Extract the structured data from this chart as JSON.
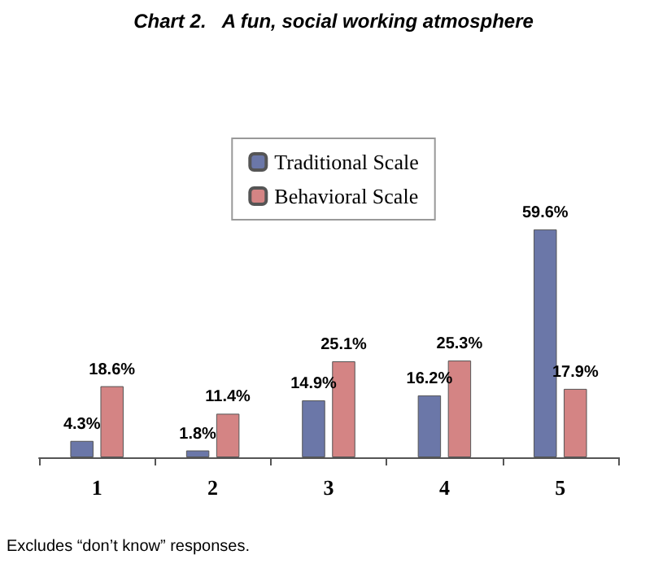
{
  "chart_data": {
    "type": "bar",
    "title": "Chart 2.   A fun, social working atmosphere",
    "categories": [
      "1",
      "2",
      "3",
      "4",
      "5"
    ],
    "series": [
      {
        "name": "Traditional Scale",
        "color": "#6b77a8",
        "values": [
          4.3,
          1.8,
          14.9,
          16.2,
          59.6
        ],
        "value_labels": [
          "4.3%",
          "1.8%",
          "14.9%",
          "16.2%",
          "59.6%"
        ]
      },
      {
        "name": "Behavioral Scale",
        "color": "#d48484",
        "values": [
          18.6,
          11.4,
          25.1,
          25.3,
          17.9
        ],
        "value_labels": [
          "18.6%",
          "11.4%",
          "25.1%",
          "25.3%",
          "17.9%"
        ]
      }
    ],
    "legend": "top",
    "annotations": [
      "Excludes “don’t know” responses."
    ]
  }
}
